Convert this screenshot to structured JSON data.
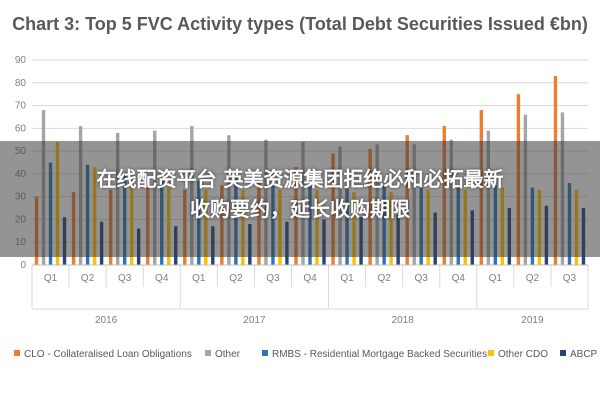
{
  "chart_data": {
    "type": "bar",
    "title": "Chart 3: Top 5 FVC Activity types (Total Debt Securities Issued €bn)",
    "ylim": [
      0,
      90
    ],
    "yticks": [
      0,
      10,
      20,
      30,
      40,
      50,
      60,
      70,
      80,
      90
    ],
    "grid": true,
    "legend_position": "bottom",
    "categories": [
      "Q1",
      "Q2",
      "Q3",
      "Q4",
      "Q1",
      "Q2",
      "Q3",
      "Q4",
      "Q1",
      "Q2",
      "Q3",
      "Q4",
      "Q1",
      "Q2",
      "Q3"
    ],
    "years": [
      {
        "label": "2016",
        "quarters": 4
      },
      {
        "label": "2017",
        "quarters": 4
      },
      {
        "label": "2018",
        "quarters": 4
      },
      {
        "label": "2019",
        "quarters": 3
      }
    ],
    "series": [
      {
        "name": "CLO - Collateralised Loan Obligations",
        "color": "#ed7d31",
        "values": [
          30,
          32,
          33,
          34,
          33,
          35,
          37,
          43,
          49,
          51,
          57,
          61,
          68,
          75,
          83
        ]
      },
      {
        "name": "Other",
        "color": "#a5a5a5",
        "values": [
          68,
          61,
          58,
          59,
          61,
          57,
          55,
          54,
          52,
          53,
          53,
          55,
          59,
          66,
          67
        ]
      },
      {
        "name": "RMBS - Residential Mortgage Backed Securities",
        "color": "#2e75b6",
        "values": [
          45,
          44,
          40,
          38,
          37,
          38,
          36,
          37,
          35,
          35,
          34,
          34,
          35,
          34,
          36
        ]
      },
      {
        "name": "Other CDO",
        "color": "#ffc000",
        "values": [
          54,
          43,
          36,
          34,
          33,
          33,
          33,
          33,
          32,
          32,
          33,
          33,
          34,
          33,
          33
        ]
      },
      {
        "name": "ABCP",
        "color": "#264478",
        "values": [
          21,
          19,
          16,
          17,
          17,
          18,
          19,
          20,
          21,
          22,
          23,
          24,
          25,
          26,
          25
        ]
      }
    ]
  },
  "overlay": {
    "line1": "在线配资平台   英美资源集团拒绝必和必拓最新",
    "line2": "收购要约，延长收购期限"
  }
}
